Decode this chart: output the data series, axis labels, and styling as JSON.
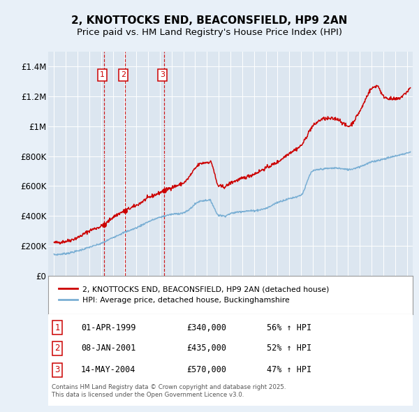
{
  "title": "2, KNOTTOCKS END, BEACONSFIELD, HP9 2AN",
  "subtitle": "Price paid vs. HM Land Registry's House Price Index (HPI)",
  "title_fontsize": 11,
  "subtitle_fontsize": 9.5,
  "background_color": "#e8f0f8",
  "plot_bg_color": "#dce6f0",
  "red_line_color": "#cc0000",
  "blue_line_color": "#7aafd4",
  "vline_color": "#cc0000",
  "marker_color": "#cc0000",
  "transactions": [
    {
      "num": 1,
      "date_x": 1999.25,
      "price": 340000,
      "label": "01-APR-1999",
      "price_label": "£340,000",
      "hpi_label": "56% ↑ HPI"
    },
    {
      "num": 2,
      "date_x": 2001.03,
      "price": 435000,
      "label": "08-JAN-2001",
      "price_label": "£435,000",
      "hpi_label": "52% ↑ HPI"
    },
    {
      "num": 3,
      "date_x": 2004.37,
      "price": 570000,
      "label": "14-MAY-2004",
      "price_label": "£570,000",
      "hpi_label": "47% ↑ HPI"
    }
  ],
  "ylim": [
    0,
    1500000
  ],
  "yticks": [
    0,
    200000,
    400000,
    600000,
    800000,
    1000000,
    1200000,
    1400000
  ],
  "ytick_labels": [
    "£0",
    "£200K",
    "£400K",
    "£600K",
    "£800K",
    "£1M",
    "£1.2M",
    "£1.4M"
  ],
  "xlim": [
    1994.5,
    2025.5
  ],
  "xlabel_fontsize": 7.5,
  "legend_label_red": "2, KNOTTOCKS END, BEACONSFIELD, HP9 2AN (detached house)",
  "legend_label_blue": "HPI: Average price, detached house, Buckinghamshire",
  "footnote": "Contains HM Land Registry data © Crown copyright and database right 2025.\nThis data is licensed under the Open Government Licence v3.0."
}
